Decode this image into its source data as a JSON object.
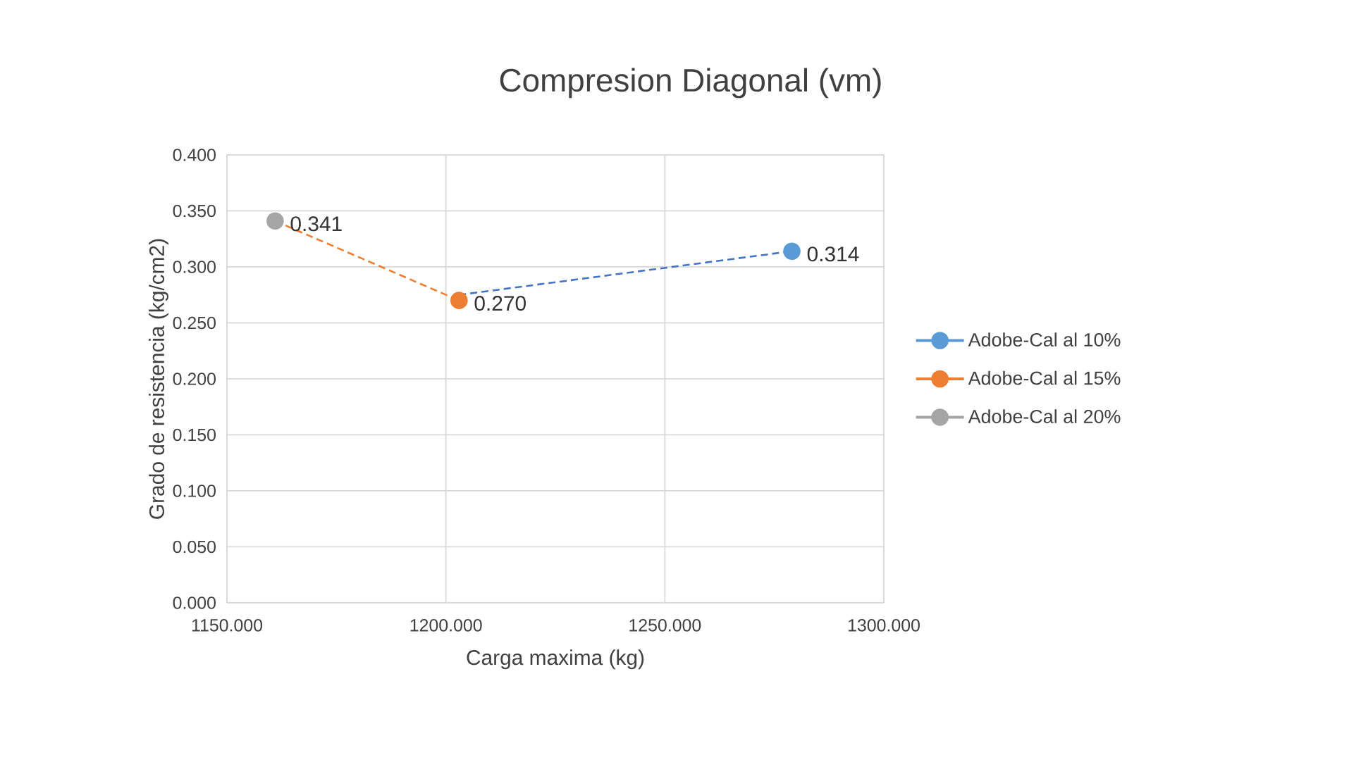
{
  "chart_data": {
    "type": "scatter",
    "title": "Compresion Diagonal (vm)",
    "xlabel": "Carga maxima (kg)",
    "ylabel": "Grado de resistencia (kg/cm2)",
    "xlim": [
      1150,
      1300
    ],
    "ylim": [
      0,
      0.4
    ],
    "xticks": [
      {
        "value": 1150,
        "label": "1150.000"
      },
      {
        "value": 1200,
        "label": "1200.000"
      },
      {
        "value": 1250,
        "label": "1250.000"
      },
      {
        "value": 1300,
        "label": "1300.000"
      }
    ],
    "yticks": [
      {
        "value": 0,
        "label": "0.000"
      },
      {
        "value": 0.05,
        "label": "0.050"
      },
      {
        "value": 0.1,
        "label": "0.100"
      },
      {
        "value": 0.15,
        "label": "0.150"
      },
      {
        "value": 0.2,
        "label": "0.200"
      },
      {
        "value": 0.25,
        "label": "0.250"
      },
      {
        "value": 0.3,
        "label": "0.300"
      },
      {
        "value": 0.35,
        "label": "0.350"
      },
      {
        "value": 0.4,
        "label": "0.400"
      }
    ],
    "grid": true,
    "legend": "right",
    "marker": "circle",
    "series": [
      {
        "name": "Adobe-Cal al 10%",
        "color": "#5b9bd5",
        "x": [
          1279
        ],
        "values": [
          0.314
        ],
        "value_labels": [
          "0.314"
        ]
      },
      {
        "name": "Adobe-Cal al 15%",
        "color": "#ed7d31",
        "x": [
          1203
        ],
        "values": [
          0.27
        ],
        "value_labels": [
          "0.270"
        ]
      },
      {
        "name": "Adobe-Cal al 20%",
        "color": "#a5a5a5",
        "x": [
          1161
        ],
        "values": [
          0.341
        ],
        "value_labels": [
          "0.341"
        ]
      },
      {
        "type": "line",
        "color": "#ed7d31",
        "x": [
          1161,
          1203
        ],
        "values": [
          0.341,
          0.27
        ],
        "line_style": "dashed",
        "marker": "none"
      },
      {
        "type": "line",
        "color": "#4472c4",
        "x": [
          1203,
          1279
        ],
        "values": [
          0.275,
          0.314
        ],
        "line_style": "dashed",
        "marker": "none"
      }
    ]
  }
}
